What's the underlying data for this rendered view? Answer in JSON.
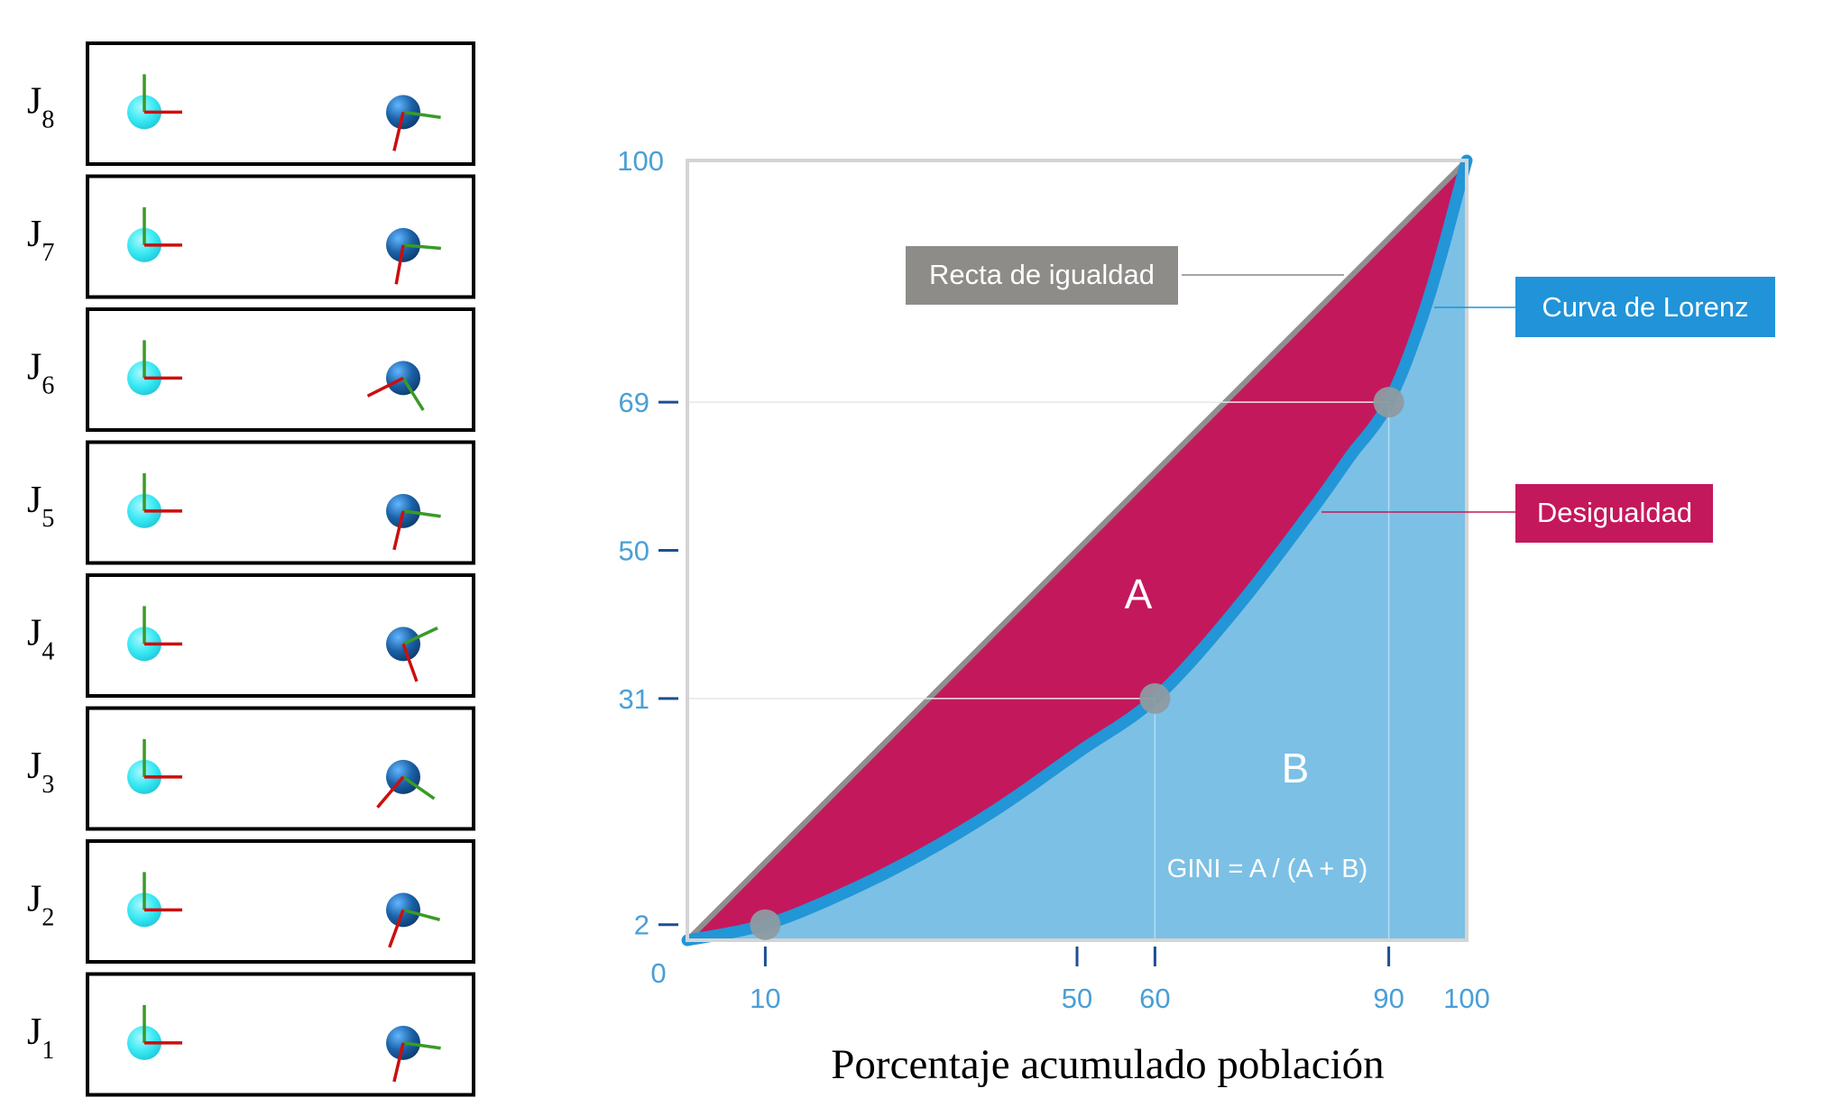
{
  "figure": {
    "colors": {
      "frame": "#000000",
      "plot_border": "#d4d4d4",
      "diagonal": "#8f8f8f",
      "inequality": "#c4185c",
      "lorenz_curve": "#2296d7",
      "lorenz_area": "#7cc0e5",
      "axis_text": "#4a9fd6",
      "axis_tick": "#1b4f92",
      "marker": "#8e9aa1",
      "equality_label_bg": "#8d8c88",
      "lorenz_label_bg": "#2193d8",
      "inequality_label_bg": "#c4185c",
      "axis_x_red": "#cc0e0e",
      "axis_y_green": "#3a9a27",
      "sphere_light": "#36e8f2",
      "sphere_dark": "#1b62a8"
    }
  },
  "joints": [
    {
      "label": "J",
      "sub": "8",
      "left_icon": "coordinate-frame-icon",
      "right_icon": "rotated-coordinate-frame-icon",
      "right_rotation_deg": 8
    },
    {
      "label": "J",
      "sub": "7",
      "left_icon": "coordinate-frame-icon",
      "right_icon": "rotated-coordinate-frame-icon",
      "right_rotation_deg": 5
    },
    {
      "label": "J",
      "sub": "6",
      "left_icon": "coordinate-frame-icon",
      "right_icon": "rotated-coordinate-frame-icon",
      "right_rotation_deg": 58
    },
    {
      "label": "J",
      "sub": "5",
      "left_icon": "coordinate-frame-icon",
      "right_icon": "rotated-coordinate-frame-icon",
      "right_rotation_deg": 8
    },
    {
      "label": "J",
      "sub": "4",
      "left_icon": "coordinate-frame-icon",
      "right_icon": "rotated-coordinate-frame-icon",
      "right_rotation_deg": -25
    },
    {
      "label": "J",
      "sub": "3",
      "left_icon": "coordinate-frame-icon",
      "right_icon": "rotated-coordinate-frame-icon",
      "right_rotation_deg": 35
    },
    {
      "label": "J",
      "sub": "2",
      "left_icon": "coordinate-frame-icon",
      "right_icon": "rotated-coordinate-frame-icon",
      "right_rotation_deg": 15
    },
    {
      "label": "J",
      "sub": "1",
      "left_icon": "coordinate-frame-icon",
      "right_icon": "rotated-coordinate-frame-icon",
      "right_rotation_deg": 8
    }
  ],
  "chart_data": {
    "type": "area",
    "xlabel": "Porcentaje acumulado población",
    "ylabel": "",
    "xlim": [
      0,
      100
    ],
    "ylim": [
      0,
      100
    ],
    "grid": false,
    "legend": "right",
    "x_ticks": [
      {
        "value": 0,
        "label": "0"
      },
      {
        "value": 10,
        "label": "10"
      },
      {
        "value": 50,
        "label": "50"
      },
      {
        "value": 60,
        "label": "60"
      },
      {
        "value": 90,
        "label": "90"
      },
      {
        "value": 100,
        "label": "100"
      }
    ],
    "y_ticks": [
      {
        "value": 100,
        "label": "100"
      },
      {
        "value": 69,
        "label": "69"
      },
      {
        "value": 50,
        "label": "50"
      },
      {
        "value": 31,
        "label": "31"
      },
      {
        "value": 2,
        "label": "2"
      }
    ],
    "series": [
      {
        "name": "Recta de igualdad",
        "x": [
          0,
          100
        ],
        "y": [
          0,
          100
        ]
      },
      {
        "name": "Curva de Lorenz",
        "x": [
          0,
          10,
          20,
          30,
          40,
          50,
          60,
          70,
          80,
          85,
          90,
          95,
          100
        ],
        "y": [
          0,
          2,
          6,
          11,
          17,
          24,
          31,
          42,
          55,
          62,
          69,
          82,
          100
        ]
      }
    ],
    "markers": [
      {
        "x": 10,
        "y": 2
      },
      {
        "x": 60,
        "y": 31
      },
      {
        "x": 90,
        "y": 69
      }
    ],
    "legend_labels": {
      "equality": "Recta de igualdad",
      "lorenz": "Curva de Lorenz",
      "inequality": "Desigualdad"
    },
    "region_labels": {
      "a": "A",
      "b": "B"
    },
    "formula": "GINI = A / (A + B)"
  }
}
